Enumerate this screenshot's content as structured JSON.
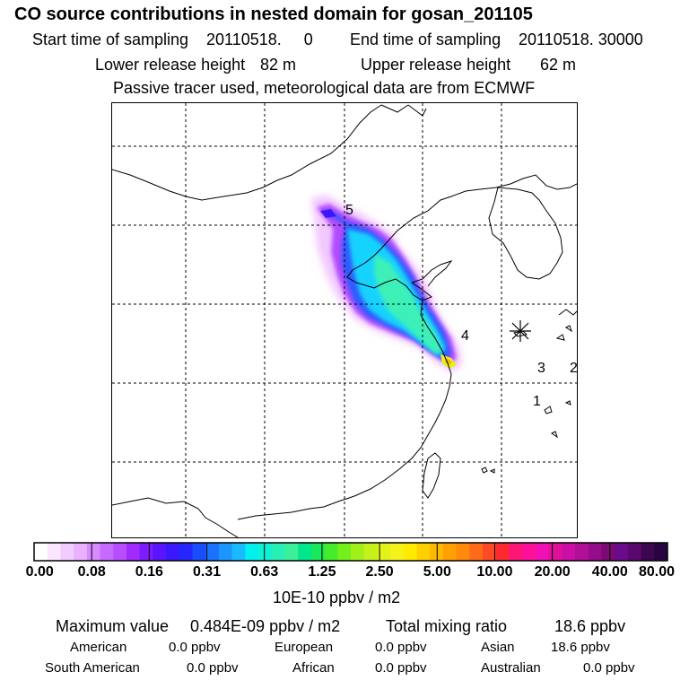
{
  "title": "CO  source contributions in nested domain for gosan_201105",
  "sampling": {
    "start_label": "Start time of sampling",
    "start_value": "20110518.     0",
    "end_label": "End time of sampling",
    "end_value": "20110518. 30000"
  },
  "release": {
    "lower_label": "Lower release height",
    "lower_value": "82 m",
    "upper_label": "Upper release height",
    "upper_value": "62 m"
  },
  "note": "Passive tracer used, meteorological data are from ECMWF",
  "map": {
    "markers": [
      "5",
      "4",
      "3",
      "2",
      "1"
    ],
    "receptor_symbol": "asterisk-icon"
  },
  "colorbar": {
    "tick_labels": [
      "0.00",
      "0.08",
      "0.16",
      "0.31",
      "0.63",
      "1.25",
      "2.50",
      "5.00",
      "10.00",
      "20.00",
      "40.00",
      "80.00"
    ],
    "unit_label": "10E-10 ppbv / m2",
    "colors": [
      "#ffffff",
      "#fbe6ff",
      "#f3ccff",
      "#ebb0ff",
      "#d88aff",
      "#c66aff",
      "#b84cff",
      "#a32aff",
      "#7d1cff",
      "#5a14ff",
      "#3a18ff",
      "#2626ff",
      "#1a4cff",
      "#1b72ff",
      "#1c96ff",
      "#19bbff",
      "#00f0f0",
      "#12f0d4",
      "#26f0b5",
      "#3cf09a",
      "#00e68c",
      "#18e85a",
      "#44ec2a",
      "#73f01a",
      "#a2f01a",
      "#c6f01a",
      "#e2f21a",
      "#f5f21a",
      "#ffea00",
      "#ffd000",
      "#ffb800",
      "#ff9f00",
      "#ff8a0c",
      "#ff6a18",
      "#ff4a24",
      "#ff2a30",
      "#ff1478",
      "#ff109a",
      "#f010b4",
      "#e0109a",
      "#cc0ea6",
      "#b10e99",
      "#960c8a",
      "#7c0a73",
      "#6a0a8c",
      "#5a0870",
      "#3c0650",
      "#280440"
    ]
  },
  "stats": {
    "max_label": "Maximum value",
    "max_value": "0.484E-09 ppbv / m2",
    "total_label": "Total mixing ratio",
    "total_value": "18.6 ppbv",
    "regions": [
      {
        "name": "American",
        "value": "0.0 ppbv"
      },
      {
        "name": "European",
        "value": "0.0 ppbv"
      },
      {
        "name": "Asian",
        "value": "18.6 ppbv"
      },
      {
        "name": "South American",
        "value": "0.0 ppbv"
      },
      {
        "name": "African",
        "value": "0.0 ppbv"
      },
      {
        "name": "Australian",
        "value": "0.0 ppbv"
      }
    ]
  }
}
